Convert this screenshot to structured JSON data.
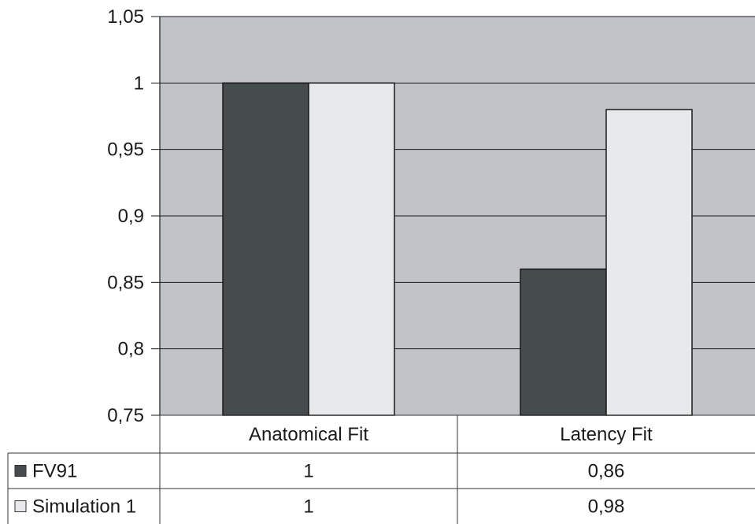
{
  "chart_data": {
    "type": "bar",
    "categories": [
      "Anatomical Fit",
      "Latency Fit"
    ],
    "series": [
      {
        "name": "FV91",
        "values": [
          1,
          0.86
        ],
        "display": [
          "1",
          "0,86"
        ],
        "color": "#464b4d"
      },
      {
        "name": "Simulation 1",
        "values": [
          1,
          0.98
        ],
        "display": [
          "1",
          "0,98"
        ],
        "color": "#e8e9eb"
      }
    ],
    "ylim": [
      0.75,
      1.05
    ],
    "yticks": [
      {
        "value": 0.75,
        "label": "0,75"
      },
      {
        "value": 0.8,
        "label": "0,8"
      },
      {
        "value": 0.85,
        "label": "0,85"
      },
      {
        "value": 0.9,
        "label": "0,9"
      },
      {
        "value": 0.95,
        "label": "0,95"
      },
      {
        "value": 1.0,
        "label": "1"
      },
      {
        "value": 1.05,
        "label": "1,05"
      }
    ],
    "grid": true,
    "legend": "data-table-left",
    "plot_background": "#c0c3c8",
    "title": "",
    "xlabel": "",
    "ylabel": ""
  }
}
